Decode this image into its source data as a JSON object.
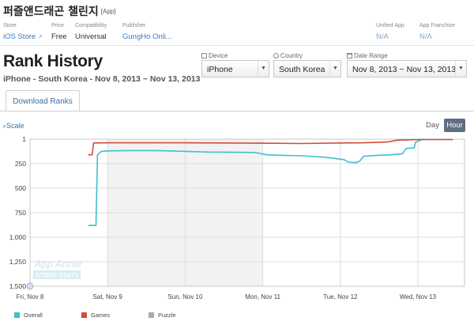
{
  "app": {
    "title": "퍼즐앤드래곤 챌린지",
    "tag": "[App]"
  },
  "meta": {
    "store_label": "Store",
    "store_value": "iOS Store",
    "price_label": "Price",
    "price_value": "Free",
    "compat_label": "Compatibility",
    "compat_value": "Universal",
    "publisher_label": "Publisher",
    "publisher_value": "GungHo Onli...",
    "unified_label": "Unified App",
    "unified_value": "N/A",
    "franchise_label": "App Franchise",
    "franchise_value": "N/A"
  },
  "header": {
    "title": "Rank History",
    "subline": "iPhone - South Korea - Nov 8, 2013 ~ Nov 13, 2013"
  },
  "filters": {
    "device_label": "Device",
    "device_value": "iPhone",
    "country_label": "Country",
    "country_value": "South Korea",
    "date_label": "Date Range",
    "date_value": "Nov 8, 2013 ~ Nov 13, 2013"
  },
  "tabs": {
    "download_ranks": "Download Ranks"
  },
  "controls": {
    "scale": "Scale",
    "day": "Day",
    "hour": "Hour"
  },
  "colors": {
    "overall": "#3fbfcf",
    "games": "#d64a37",
    "puzzle": "#a9a9a9",
    "highlight": "#f2f2f2",
    "grid": "#dddddd"
  },
  "chart_data": {
    "type": "line",
    "y_inverted": true,
    "ylim": [
      1,
      1500
    ],
    "y_ticks": [
      "1",
      "250",
      "500",
      "750",
      "1,000",
      "1,250",
      "1,500"
    ],
    "y_tick_values": [
      1,
      250,
      500,
      750,
      1000,
      1250,
      1500
    ],
    "x_tick_labels": [
      "Fri, Nov 8",
      "Sat, Nov 9",
      "Sun, Nov 10",
      "Mon, Nov 11",
      "Tue, Nov 12",
      "Wed, Nov 13"
    ],
    "x_range_days": [
      0,
      5.6
    ],
    "highlight_days": [
      1,
      3
    ],
    "watermark": [
      "App Annie",
      "STORE STATS"
    ],
    "series": [
      {
        "name": "Overall",
        "color_key": "overall",
        "points": [
          [
            0.75,
            880
          ],
          [
            0.85,
            880
          ],
          [
            0.87,
            160
          ],
          [
            0.92,
            125
          ],
          [
            1.0,
            120
          ],
          [
            1.3,
            117
          ],
          [
            1.6,
            117
          ],
          [
            1.8,
            120
          ],
          [
            2.0,
            125
          ],
          [
            2.3,
            132
          ],
          [
            2.7,
            135
          ],
          [
            2.9,
            137
          ],
          [
            3.05,
            160
          ],
          [
            3.2,
            165
          ],
          [
            3.5,
            170
          ],
          [
            3.8,
            185
          ],
          [
            4.05,
            210
          ],
          [
            4.1,
            235
          ],
          [
            4.2,
            240
          ],
          [
            4.25,
            225
          ],
          [
            4.3,
            175
          ],
          [
            4.5,
            165
          ],
          [
            4.65,
            160
          ],
          [
            4.8,
            150
          ],
          [
            4.85,
            95
          ],
          [
            4.95,
            90
          ],
          [
            4.97,
            30
          ],
          [
            5.05,
            5
          ],
          [
            5.1,
            5
          ]
        ]
      },
      {
        "name": "Games",
        "color_key": "games",
        "points": [
          [
            0.75,
            160
          ],
          [
            0.8,
            160
          ],
          [
            0.82,
            40
          ],
          [
            1.0,
            38
          ],
          [
            1.5,
            38
          ],
          [
            2.0,
            38
          ],
          [
            2.5,
            40
          ],
          [
            3.0,
            42
          ],
          [
            3.5,
            45
          ],
          [
            4.0,
            40
          ],
          [
            4.3,
            38
          ],
          [
            4.6,
            30
          ],
          [
            4.75,
            10
          ],
          [
            4.85,
            8
          ],
          [
            5.0,
            5
          ],
          [
            5.3,
            5
          ],
          [
            5.45,
            5
          ]
        ]
      }
    ],
    "legend": [
      "Overall",
      "Games",
      "Puzzle"
    ],
    "legend_colors": [
      "#3fbfcf",
      "#d64a37",
      "#a9a9a9"
    ],
    "legend_placement": "bottom"
  }
}
